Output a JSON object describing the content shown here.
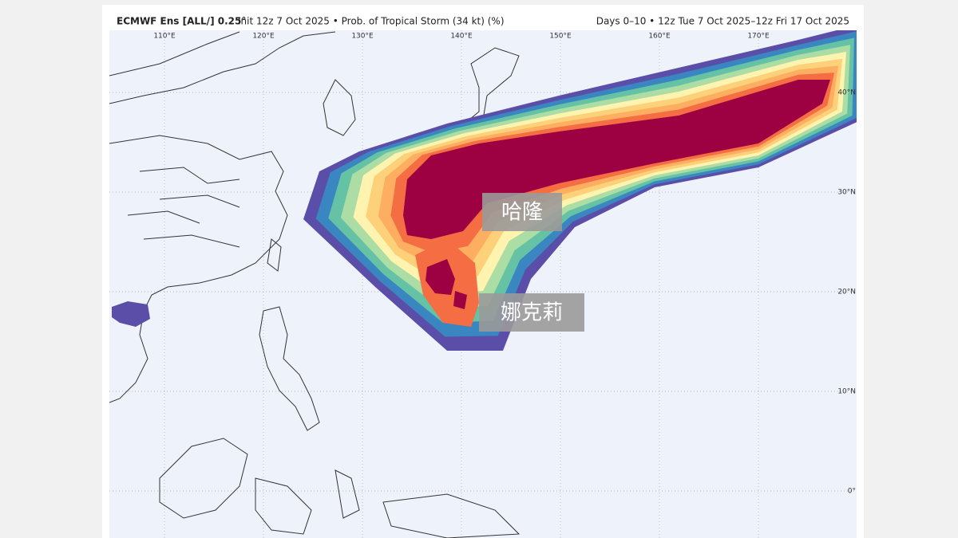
{
  "header": {
    "model": "ECMWF Ens [ALL/] 0.25°",
    "subtitle": "Init 12z 7 Oct 2025 • Prob. of Tropical Storm (34 kt) (%)",
    "period": "Days 0–10 • 12z Tue 7 Oct 2025–12z Fri 17 Oct 2025"
  },
  "map": {
    "lon_labels": [
      "110°E",
      "120°E",
      "130°E",
      "140°E",
      "150°E",
      "160°E",
      "170°E"
    ],
    "lat_labels": [
      "40°N",
      "30°N",
      "20°N",
      "10°N",
      "0°"
    ],
    "storm_labels": [
      "哈隆",
      "娜克莉"
    ]
  }
}
